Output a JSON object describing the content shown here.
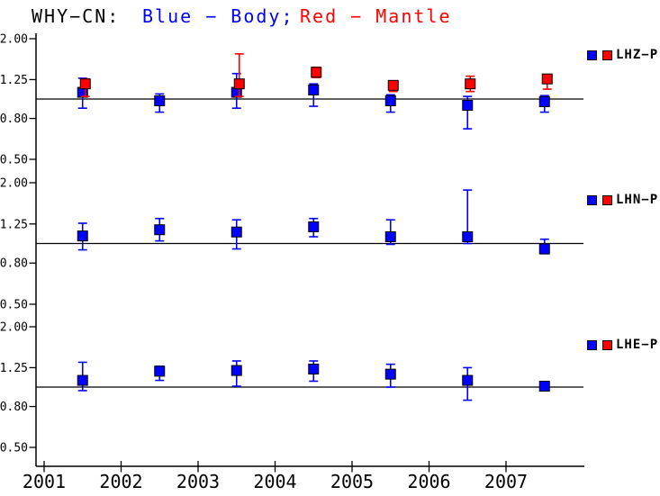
{
  "title": {
    "station": "WHY−CN:",
    "body_key": "Blue − Body;",
    "mantle_key": "Red − Mantle"
  },
  "colors": {
    "blue": "#0000ff",
    "red": "#ff0000",
    "axis": "#000000",
    "background": "#ffffff"
  },
  "xaxis": {
    "tick_labels": [
      "2001",
      "2002",
      "2003",
      "2004",
      "2005",
      "2006",
      "2007"
    ],
    "tick_values": [
      2001,
      2002,
      2003,
      2004,
      2005,
      2006,
      2007
    ],
    "range": [
      2000.9,
      2008.0
    ]
  },
  "chart_data": [
    {
      "type": "scatter",
      "legend": "LHZ−P",
      "legend_marker_colors": [
        "#0000ff",
        "#ff0000"
      ],
      "yscale": "log",
      "ylim": [
        0.5,
        2.0
      ],
      "ytick_labels": [
        "2.00",
        "1.25",
        "0.80",
        "0.50"
      ],
      "ytick_values": [
        2.0,
        1.25,
        0.8,
        0.5
      ],
      "ref_line": 1.0,
      "x": [
        2001.5,
        2002.5,
        2003.5,
        2004.5,
        2005.5,
        2006.5,
        2007.5
      ],
      "series": [
        {
          "name": "Body",
          "color": "#0000ff",
          "values": [
            1.08,
            0.98,
            1.08,
            1.11,
            0.98,
            0.93,
            0.97
          ],
          "lo": [
            0.9,
            0.86,
            0.9,
            0.92,
            0.86,
            0.71,
            0.86
          ],
          "hi": [
            1.27,
            1.06,
            1.34,
            1.19,
            1.05,
            1.03,
            1.04
          ]
        },
        {
          "name": "Mantle",
          "color": "#ff0000",
          "values": [
            1.19,
            null,
            1.19,
            1.36,
            1.17,
            1.19,
            1.26
          ],
          "lo": [
            1.03,
            null,
            1.03,
            1.28,
            1.09,
            1.09,
            1.12
          ],
          "hi": [
            1.26,
            null,
            1.68,
            1.44,
            1.23,
            1.3,
            1.32
          ]
        }
      ]
    },
    {
      "type": "scatter",
      "legend": "LHN−P",
      "legend_marker_colors": [
        "#0000ff",
        "#ff0000"
      ],
      "yscale": "log",
      "ylim": [
        0.5,
        2.0
      ],
      "ytick_labels": [
        "2.00",
        "1.25",
        "0.80",
        "0.50"
      ],
      "ytick_values": [
        2.0,
        1.25,
        0.8,
        0.5
      ],
      "ref_line": 1.0,
      "x": [
        2001.5,
        2002.5,
        2003.5,
        2004.5,
        2005.5,
        2006.5,
        2007.5
      ],
      "series": [
        {
          "name": "Body",
          "color": "#0000ff",
          "values": [
            1.09,
            1.17,
            1.14,
            1.21,
            1.08,
            1.08,
            0.94
          ],
          "lo": [
            0.93,
            1.03,
            0.94,
            1.08,
            0.99,
            1.0,
            0.89
          ],
          "hi": [
            1.26,
            1.33,
            1.31,
            1.33,
            1.31,
            1.84,
            1.05
          ]
        }
      ]
    },
    {
      "type": "scatter",
      "legend": "LHE−P",
      "legend_marker_colors": [
        "#0000ff",
        "#ff0000"
      ],
      "yscale": "log",
      "ylim": [
        0.5,
        2.0
      ],
      "ytick_labels": [
        "2.00",
        "1.25",
        "0.80",
        "0.50"
      ],
      "ytick_values": [
        2.0,
        1.25,
        0.8,
        0.5
      ],
      "ref_line": 1.0,
      "x": [
        2001.5,
        2002.5,
        2003.5,
        2004.5,
        2005.5,
        2006.5,
        2007.5
      ],
      "series": [
        {
          "name": "Body",
          "color": "#0000ff",
          "values": [
            1.08,
            1.2,
            1.21,
            1.23,
            1.16,
            1.08,
            1.01
          ],
          "lo": [
            0.96,
            1.08,
            1.01,
            1.07,
            1.0,
            0.86,
            0.97
          ],
          "hi": [
            1.33,
            1.27,
            1.35,
            1.35,
            1.3,
            1.25,
            1.05
          ]
        }
      ]
    }
  ]
}
